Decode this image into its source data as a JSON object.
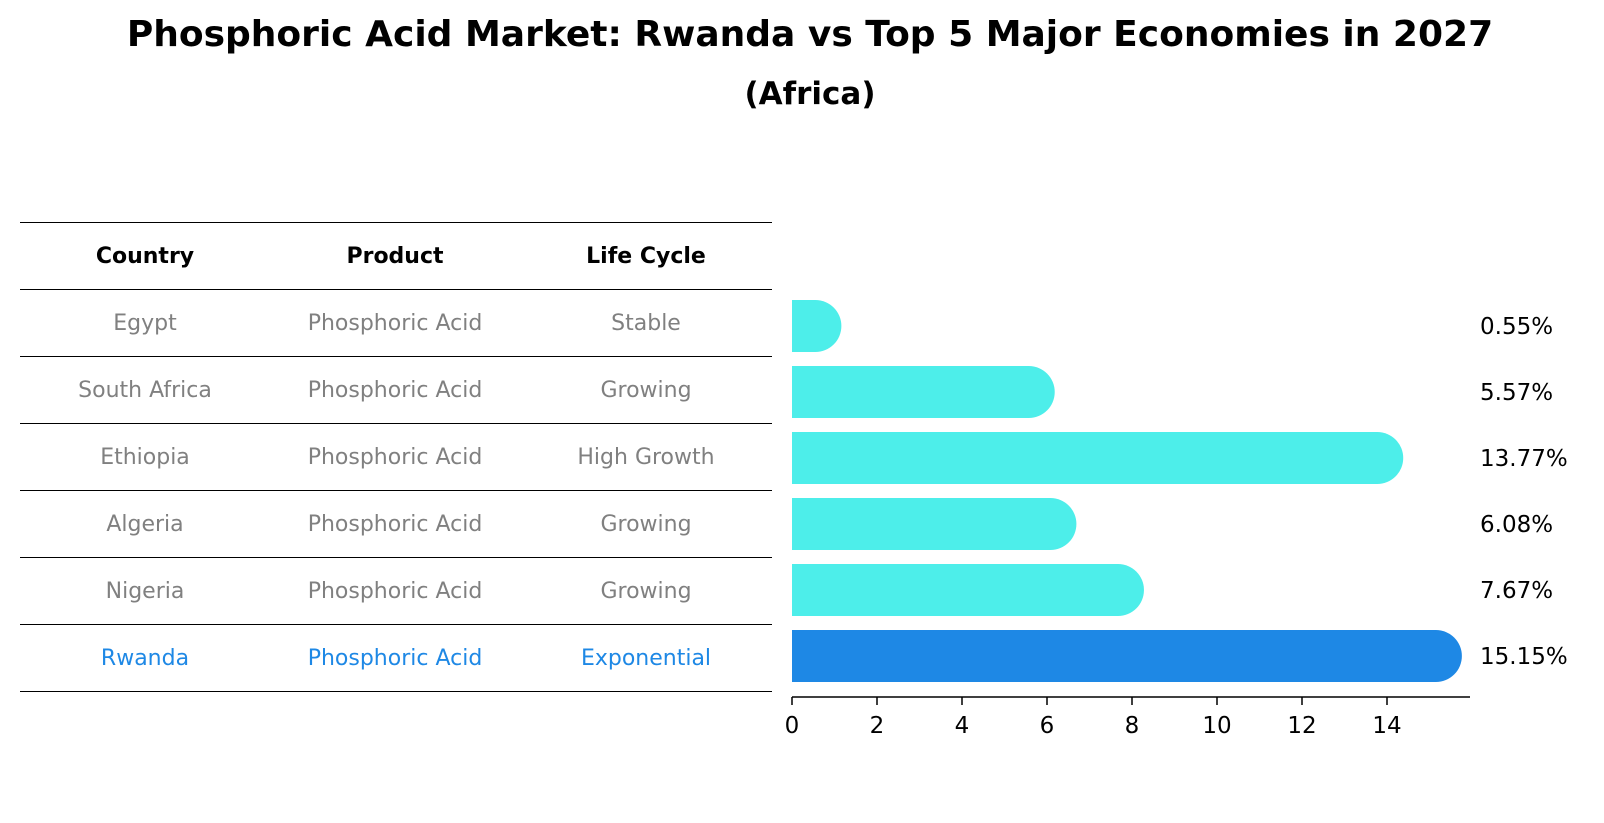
{
  "title": "Phosphoric Acid Market: Rwanda vs Top 5 Major Economies in 2027",
  "subtitle": "(Africa)",
  "table": {
    "headers": [
      "Country",
      "Product",
      "Life Cycle"
    ],
    "rows": [
      {
        "country": "Egypt",
        "product": "Phosphoric Acid",
        "life_cycle": "Stable",
        "highlight": false
      },
      {
        "country": "South Africa",
        "product": "Phosphoric Acid",
        "life_cycle": "Growing",
        "highlight": false
      },
      {
        "country": "Ethiopia",
        "product": "Phosphoric Acid",
        "life_cycle": "High Growth",
        "highlight": false
      },
      {
        "country": "Algeria",
        "product": "Phosphoric Acid",
        "life_cycle": "Growing",
        "highlight": false
      },
      {
        "country": "Nigeria",
        "product": "Phosphoric Acid",
        "life_cycle": "Growing",
        "highlight": false
      },
      {
        "country": "Rwanda",
        "product": "Phosphoric Acid",
        "life_cycle": "Exponential",
        "highlight": true
      }
    ]
  },
  "colors": {
    "bar": "#4deeea",
    "highlight_bar": "#1e88e5",
    "highlight_text": "#1e88e5",
    "muted_text": "#808080"
  },
  "chart_data": {
    "type": "bar",
    "orientation": "horizontal",
    "categories": [
      "Egypt",
      "South Africa",
      "Ethiopia",
      "Algeria",
      "Nigeria",
      "Rwanda"
    ],
    "values": [
      0.55,
      5.57,
      13.77,
      6.08,
      7.67,
      15.15
    ],
    "value_labels": [
      "0.55%",
      "5.57%",
      "13.77%",
      "6.08%",
      "7.67%",
      "15.15%"
    ],
    "highlight_index": 5,
    "xticks": [
      0,
      2,
      4,
      6,
      8,
      10,
      12,
      14
    ],
    "xlim": [
      0,
      16
    ],
    "xlabel": "",
    "ylabel": "",
    "grid": false
  }
}
